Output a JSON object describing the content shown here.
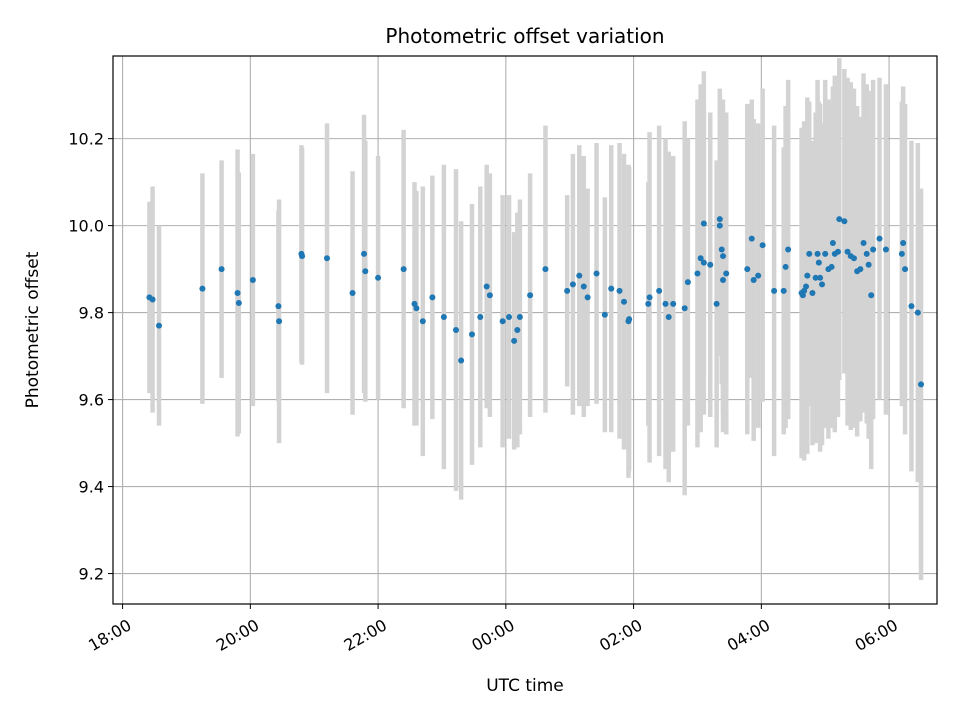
{
  "chart_data": {
    "type": "scatter",
    "title": "Photometric offset variation",
    "xlabel": "UTC time",
    "ylabel": "Photometric offset",
    "x_unit": "hours relative to 00:00 UTC",
    "xlim": [
      -6.15,
      6.75
    ],
    "ylim": [
      9.13,
      10.39
    ],
    "x_ticks": [
      -6,
      -4,
      -2,
      0,
      2,
      4,
      6
    ],
    "x_tick_labels": [
      "18:00",
      "20:00",
      "22:00",
      "00:00",
      "02:00",
      "04:00",
      "06:00"
    ],
    "y_ticks": [
      9.2,
      9.4,
      9.6,
      9.8,
      10.0,
      10.2
    ],
    "y_tick_labels": [
      "9.2",
      "9.4",
      "9.6",
      "9.8",
      "10.0",
      "10.2"
    ],
    "grid": true,
    "colors": {
      "point": "#1f77b4",
      "errorbar": "#d3d3d3",
      "grid": "#b0b0b0"
    },
    "series": [
      {
        "points": [
          [
            -5.58,
            9.835,
            0.22
          ],
          [
            -5.53,
            9.83,
            0.26
          ],
          [
            -5.43,
            9.77,
            0.23
          ],
          [
            -4.75,
            9.855,
            0.265
          ],
          [
            -4.45,
            9.9,
            0.25
          ],
          [
            -4.2,
            9.845,
            0.33
          ],
          [
            -4.18,
            9.822,
            0.3
          ],
          [
            -3.96,
            9.875,
            0.29
          ],
          [
            -3.56,
            9.815,
            0.22
          ],
          [
            -3.55,
            9.78,
            0.28
          ],
          [
            -3.2,
            9.935,
            0.25
          ],
          [
            -3.19,
            9.93,
            0.25
          ],
          [
            -2.8,
            9.925,
            0.31
          ],
          [
            -2.4,
            9.845,
            0.28
          ],
          [
            -2.22,
            9.935,
            0.32
          ],
          [
            -2.2,
            9.895,
            0.3
          ],
          [
            -2.0,
            9.88,
            0.28
          ],
          [
            -1.6,
            9.9,
            0.32
          ],
          [
            -1.43,
            9.82,
            0.28
          ],
          [
            -1.4,
            9.81,
            0.27
          ],
          [
            -1.3,
            9.78,
            0.31
          ],
          [
            -1.15,
            9.835,
            0.28
          ],
          [
            -0.97,
            9.79,
            0.35
          ],
          [
            -0.78,
            9.76,
            0.37
          ],
          [
            -0.7,
            9.69,
            0.32
          ],
          [
            -0.53,
            9.75,
            0.3
          ],
          [
            -0.4,
            9.79,
            0.3
          ],
          [
            -0.3,
            9.86,
            0.28
          ],
          [
            -0.25,
            9.84,
            0.28
          ],
          [
            -0.05,
            9.78,
            0.29
          ],
          [
            0.05,
            9.79,
            0.28
          ],
          [
            0.13,
            9.735,
            0.25
          ],
          [
            0.18,
            9.76,
            0.27
          ],
          [
            0.22,
            9.79,
            0.27
          ],
          [
            0.38,
            9.84,
            0.28
          ],
          [
            0.62,
            9.9,
            0.33
          ],
          [
            0.96,
            9.85,
            0.22
          ],
          [
            1.05,
            9.865,
            0.3
          ],
          [
            1.15,
            9.885,
            0.3
          ],
          [
            1.22,
            9.86,
            0.3
          ],
          [
            1.28,
            9.835,
            0.25
          ],
          [
            1.42,
            9.89,
            0.3
          ],
          [
            1.55,
            9.795,
            0.27
          ],
          [
            1.65,
            9.855,
            0.33
          ],
          [
            1.78,
            9.85,
            0.34
          ],
          [
            1.85,
            9.825,
            0.34
          ],
          [
            1.92,
            9.78,
            0.36
          ],
          [
            1.93,
            9.785,
            0.35
          ],
          [
            2.23,
            9.82,
            0.28
          ],
          [
            2.25,
            9.835,
            0.38
          ],
          [
            2.4,
            9.85,
            0.38
          ],
          [
            2.5,
            9.82,
            0.38
          ],
          [
            2.55,
            9.79,
            0.38
          ],
          [
            2.62,
            9.82,
            0.34
          ],
          [
            2.8,
            9.81,
            0.43
          ],
          [
            2.85,
            9.87,
            0.33
          ],
          [
            3.0,
            9.89,
            0.4
          ],
          [
            3.05,
            9.925,
            0.4
          ],
          [
            3.1,
            9.915,
            0.35
          ],
          [
            3.1,
            10.005,
            0.35
          ],
          [
            3.2,
            9.91,
            0.35
          ],
          [
            3.3,
            9.82,
            0.33
          ],
          [
            3.35,
            10.015,
            0.3
          ],
          [
            3.35,
            10.0,
            0.3
          ],
          [
            3.38,
            9.945,
            0.31
          ],
          [
            3.4,
            9.93,
            0.36
          ],
          [
            3.4,
            9.875,
            0.35
          ],
          [
            3.45,
            9.89,
            0.37
          ],
          [
            3.78,
            9.9,
            0.38
          ],
          [
            3.85,
            9.97,
            0.32
          ],
          [
            3.88,
            9.875,
            0.37
          ],
          [
            3.95,
            9.885,
            0.35
          ],
          [
            4.02,
            9.955,
            0.36
          ],
          [
            4.2,
            9.85,
            0.38
          ],
          [
            4.35,
            9.85,
            0.33
          ],
          [
            4.38,
            9.905,
            0.37
          ],
          [
            4.42,
            9.945,
            0.39
          ],
          [
            4.63,
            9.845,
            0.38
          ],
          [
            4.65,
            9.84,
            0.37
          ],
          [
            4.67,
            9.85,
            0.39
          ],
          [
            4.7,
            9.86,
            0.36
          ],
          [
            4.72,
            9.885,
            0.41
          ],
          [
            4.75,
            9.935,
            0.35
          ],
          [
            4.8,
            9.845,
            0.35
          ],
          [
            4.85,
            9.88,
            0.38
          ],
          [
            4.88,
            9.935,
            0.4
          ],
          [
            4.9,
            9.915,
            0.37
          ],
          [
            4.92,
            9.88,
            0.4
          ],
          [
            4.95,
            9.865,
            0.37
          ],
          [
            5.0,
            9.935,
            0.4
          ],
          [
            5.05,
            9.9,
            0.39
          ],
          [
            5.1,
            9.905,
            0.37
          ],
          [
            5.12,
            9.96,
            0.36
          ],
          [
            5.15,
            9.935,
            0.41
          ],
          [
            5.2,
            9.94,
            0.38
          ],
          [
            5.22,
            10.015,
            0.37
          ],
          [
            5.3,
            10.01,
            0.35
          ],
          [
            5.35,
            9.94,
            0.4
          ],
          [
            5.4,
            9.93,
            0.4
          ],
          [
            5.45,
            9.925,
            0.39
          ],
          [
            5.5,
            9.895,
            0.38
          ],
          [
            5.55,
            9.9,
            0.35
          ],
          [
            5.6,
            9.96,
            0.39
          ],
          [
            5.65,
            9.935,
            0.39
          ],
          [
            5.68,
            9.91,
            0.4
          ],
          [
            5.72,
            9.84,
            0.4
          ],
          [
            5.75,
            9.945,
            0.39
          ],
          [
            5.85,
            9.97,
            0.37
          ],
          [
            5.95,
            9.945,
            0.38
          ],
          [
            6.2,
            9.935,
            0.35
          ],
          [
            6.22,
            9.96,
            0.36
          ],
          [
            6.25,
            9.9,
            0.38
          ],
          [
            6.35,
            9.815,
            0.38
          ],
          [
            6.45,
            9.8,
            0.39
          ],
          [
            6.5,
            9.635,
            0.45
          ]
        ]
      }
    ]
  }
}
